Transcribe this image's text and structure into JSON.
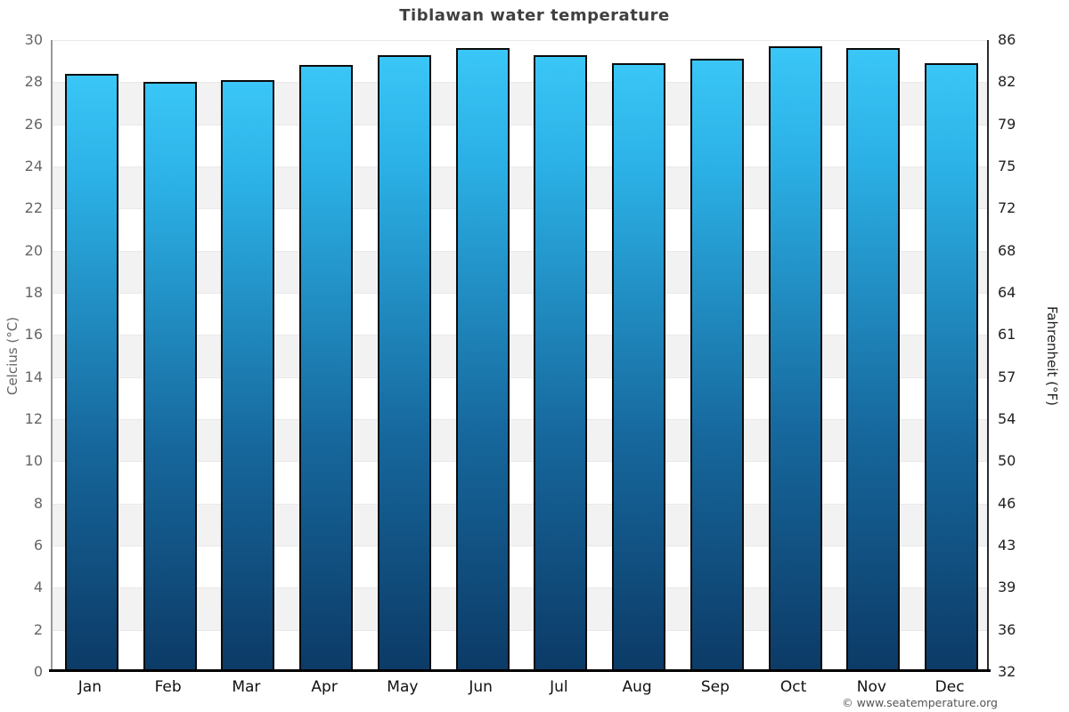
{
  "title": "Tiblawan water temperature",
  "footer": "© www.seatemperature.org",
  "chart_data": {
    "type": "bar",
    "title": "Tiblawan water temperature",
    "categories": [
      "Jan",
      "Feb",
      "Mar",
      "Apr",
      "May",
      "Jun",
      "Jul",
      "Aug",
      "Sep",
      "Oct",
      "Nov",
      "Dec"
    ],
    "values": [
      28.4,
      28.0,
      28.1,
      28.8,
      29.3,
      29.6,
      29.3,
      28.9,
      29.1,
      29.7,
      29.6,
      28.9
    ],
    "series_name": "Water temperature (°C)",
    "xlabel": "",
    "ylabel_left": "Celcius (°C)",
    "ylabel_right": "Fahrenheit (°F)",
    "ylim": [
      0,
      30
    ],
    "ytick_step": 2,
    "yticks_left": [
      "30",
      "28",
      "26",
      "24",
      "22",
      "20",
      "18",
      "16",
      "14",
      "12",
      "10",
      "8",
      "6",
      "4",
      "2",
      "0"
    ],
    "yticks_right": [
      "86",
      "82",
      "79",
      "75",
      "72",
      "68",
      "64",
      "61",
      "57",
      "54",
      "50",
      "46",
      "43",
      "39",
      "36",
      "32"
    ],
    "legend": "none",
    "grid": "horizontal-alternating-bands",
    "colors": {
      "bar_gradient_top": "#3ac6f7",
      "bar_gradient_bottom": "#0c3a66",
      "bar_border": "#0b0b0b",
      "band_gray": "#f2f2f2",
      "band_white": "#ffffff",
      "axis_bottom": "#000000",
      "tick_left_color": "#666666",
      "tick_right_color": "#222222",
      "title_color": "#404040"
    }
  }
}
